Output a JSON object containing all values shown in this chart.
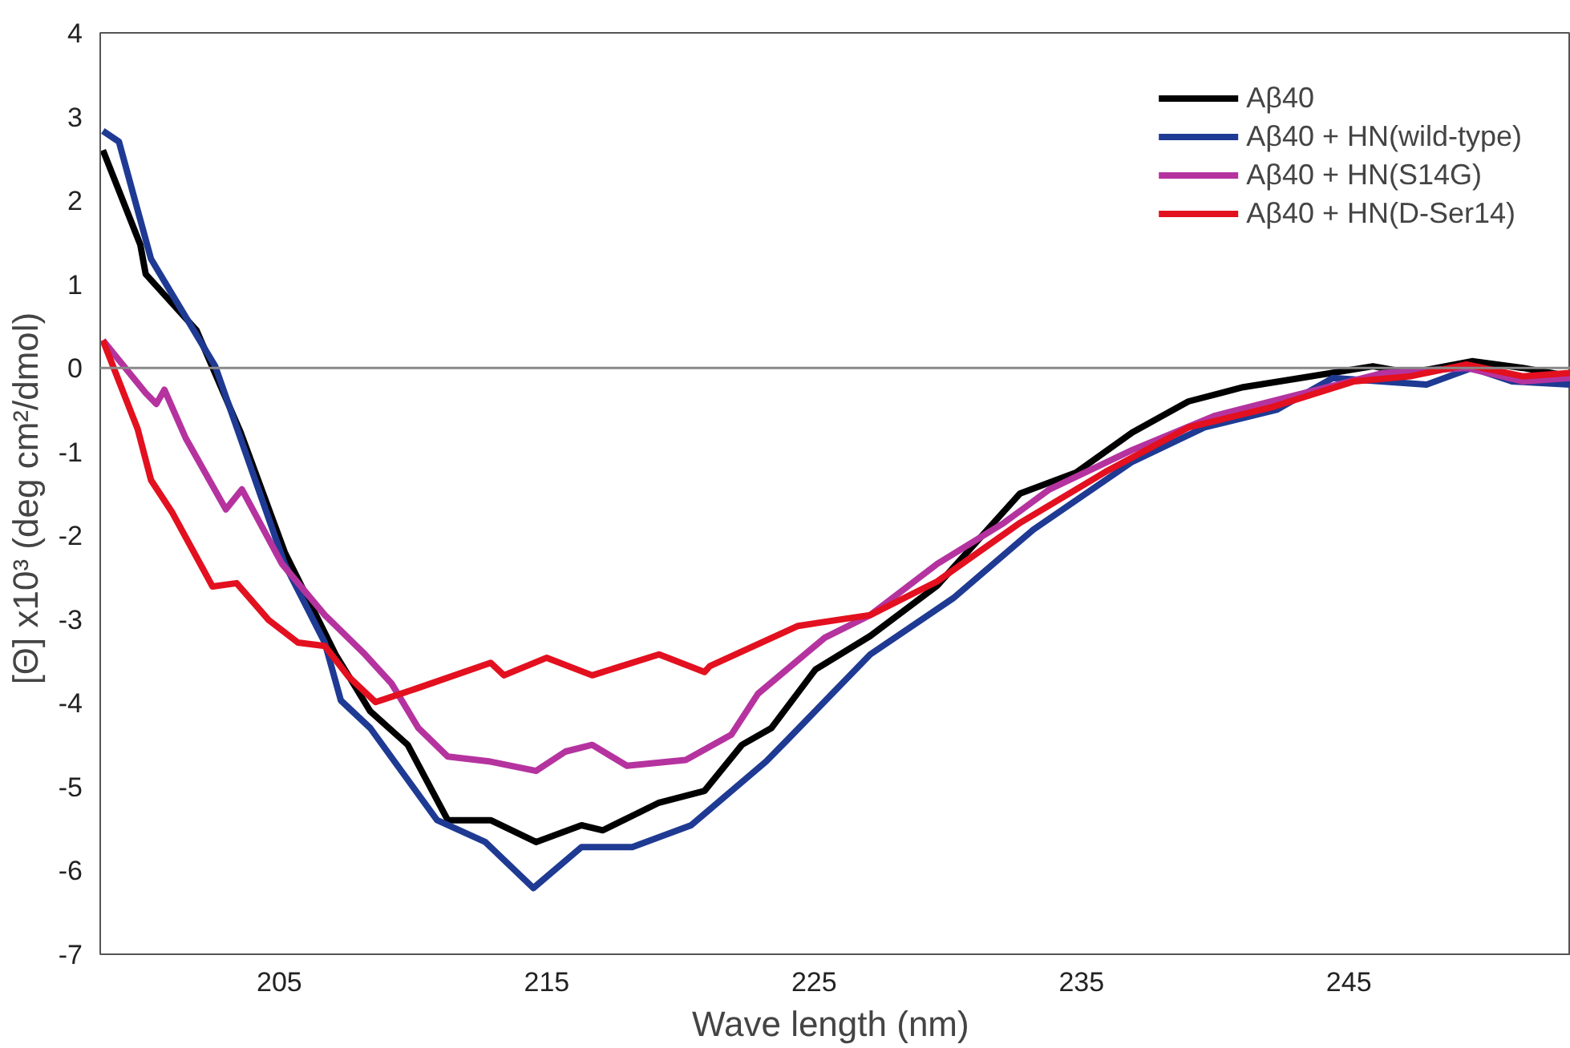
{
  "chart_data": {
    "type": "line",
    "xlabel": "Wave length  (nm)",
    "ylabel": "[Θ] x10³  (deg cm²/dmol)",
    "xlim": [
      198.3,
      253.3
    ],
    "xticks": [
      205,
      215,
      225,
      235,
      245
    ],
    "ylim": [
      -7,
      4
    ],
    "yticks": [
      -7,
      -6,
      -5,
      -4,
      -3,
      -2,
      -1,
      0,
      1,
      2,
      3,
      4
    ],
    "grid": false,
    "legend": "top right",
    "marker": "none",
    "line_style": "solid",
    "ref_lines": [
      {
        "axis": "y",
        "value": 0,
        "color": "#888888"
      }
    ],
    "series": [
      {
        "name": "Aβ40",
        "color": "#000000",
        "x": [
          198.4,
          199.8,
          200.0,
          201.9,
          203.55,
          205.2,
          207.1,
          208.4,
          209.8,
          211.3,
          212.9,
          214.6,
          216.3,
          217.1,
          219.2,
          220.9,
          222.3,
          223.4,
          225.05,
          227.1,
          229.6,
          232.7,
          234.8,
          236.9,
          239.0,
          241.05,
          243.2,
          245.9,
          247.3,
          249.6,
          251.5,
          253.3
        ],
        "values": [
          2.6,
          1.47,
          1.12,
          0.45,
          -0.77,
          -2.2,
          -3.42,
          -4.1,
          -4.5,
          -5.4,
          -5.4,
          -5.66,
          -5.46,
          -5.52,
          -5.19,
          -5.05,
          -4.5,
          -4.3,
          -3.6,
          -3.2,
          -2.6,
          -1.5,
          -1.25,
          -0.77,
          -0.4,
          -0.23,
          -0.12,
          0.02,
          -0.06,
          0.08,
          null,
          -0.1
        ]
      },
      {
        "name": "Aβ40 + HN(wild-type)",
        "color": "#1f3a93",
        "x": [
          198.4,
          199.0,
          200.2,
          202.6,
          205.2,
          206.7,
          207.3,
          208.4,
          210.9,
          212.7,
          214.5,
          216.3,
          218.2,
          220.4,
          223.2,
          224.0,
          227.1,
          230.2,
          233.2,
          236.9,
          239.6,
          242.3,
          244.4,
          247.9,
          249.6,
          251.1,
          253.3
        ],
        "values": [
          2.83,
          2.7,
          1.3,
          0.02,
          -2.34,
          -3.28,
          -3.97,
          -4.3,
          -5.4,
          -5.66,
          -6.21,
          -5.72,
          -5.72,
          -5.46,
          -4.7,
          -4.44,
          -3.42,
          -2.75,
          -1.93,
          -1.12,
          -0.71,
          -0.5,
          -0.12,
          -0.2,
          0.0,
          -0.16,
          -0.2
        ]
      },
      {
        "name": "Aβ40 + HN(S14G)",
        "color": "#b5339f",
        "x": [
          198.4,
          200.0,
          200.4,
          200.7,
          201.5,
          203.0,
          203.6,
          205.1,
          206.7,
          208.2,
          209.2,
          210.2,
          211.3,
          212.9,
          214.6,
          215.7,
          216.7,
          218.0,
          220.2,
          221.9,
          222.9,
          225.4,
          227.1,
          229.6,
          232.1,
          233.8,
          236.9,
          240.0,
          243.2,
          246.3,
          249.4,
          251.5,
          253.3
        ],
        "values": [
          0.33,
          -0.3,
          -0.43,
          -0.26,
          -0.84,
          -1.69,
          -1.45,
          -2.34,
          -2.95,
          -3.42,
          -3.77,
          -4.3,
          -4.64,
          -4.7,
          -4.81,
          -4.58,
          -4.5,
          -4.75,
          -4.68,
          -4.38,
          -3.89,
          -3.22,
          -2.95,
          -2.34,
          -1.85,
          -1.45,
          -0.98,
          -0.57,
          -0.31,
          -0.06,
          0.0,
          -0.16,
          -0.12
        ]
      },
      {
        "name": "Aβ40 + HN(D-Ser14)",
        "color": "#e3101f",
        "x": [
          198.4,
          199.7,
          200.2,
          201.0,
          202.5,
          203.4,
          204.6,
          205.7,
          206.7,
          207.6,
          208.6,
          210.1,
          212.9,
          213.4,
          215.0,
          216.7,
          219.2,
          220.9,
          221.1,
          224.4,
          227.1,
          229.6,
          232.7,
          235.9,
          239.0,
          242.1,
          245.2,
          247.3,
          249.4,
          251.5,
          253.3
        ],
        "values": [
          0.33,
          -0.73,
          -1.34,
          -1.73,
          -2.61,
          -2.57,
          -3.01,
          -3.28,
          -3.32,
          -3.69,
          -3.99,
          -3.83,
          -3.52,
          -3.67,
          -3.46,
          -3.67,
          -3.42,
          -3.63,
          -3.56,
          -3.08,
          -2.95,
          -2.55,
          -1.85,
          -1.24,
          -0.71,
          -0.47,
          -0.16,
          -0.1,
          0.04,
          -0.1,
          -0.06
        ]
      }
    ]
  }
}
